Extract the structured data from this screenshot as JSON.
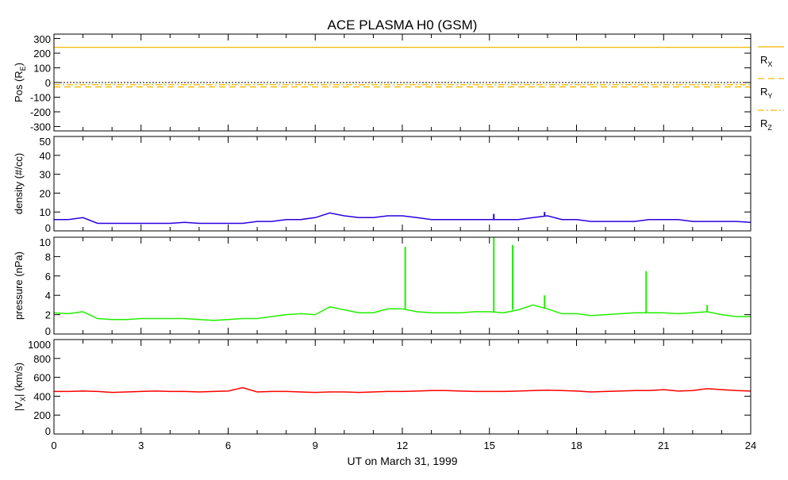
{
  "chart_data": {
    "type": "line",
    "title": "ACE PLASMA H0 (GSM)",
    "xlabel": "UT on March 31, 1999",
    "xlim": [
      0,
      24
    ],
    "xticks": [
      0,
      3,
      6,
      9,
      12,
      15,
      18,
      21,
      24
    ],
    "x": [
      0,
      0.5,
      1,
      1.5,
      2,
      2.5,
      3,
      3.5,
      4,
      4.5,
      5,
      5.5,
      6,
      6.5,
      7,
      7.5,
      8,
      8.5,
      9,
      9.5,
      10,
      10.5,
      11,
      11.5,
      12,
      12.5,
      13,
      13.5,
      14,
      14.5,
      15,
      15.5,
      16,
      16.5,
      17,
      17.5,
      18,
      18.5,
      19,
      19.5,
      20,
      20.5,
      21,
      21.5,
      22,
      22.5,
      23,
      23.5,
      24
    ],
    "panels": [
      {
        "ylabel": "Pos (R",
        "ylabel_sub": "E",
        "ylabel_end": ")",
        "ylim": [
          -330,
          330
        ],
        "yticks": [
          300,
          200,
          100,
          0,
          -100,
          -200,
          -300
        ],
        "zero_line": true,
        "series": [
          {
            "name": "R",
            "sub": "X",
            "color": "#f5b800",
            "dash": "",
            "constant": 240
          },
          {
            "name": "R",
            "sub": "Y",
            "color": "#f5b800",
            "dash": "8,5",
            "constant": -30
          },
          {
            "name": "R",
            "sub": "Z",
            "color": "#f5b800",
            "dash": "8,3,2,3",
            "constant": -15
          }
        ]
      },
      {
        "ylabel": "density (#/cc)",
        "ylim": [
          0,
          50
        ],
        "yticks": [
          0,
          10,
          20,
          30,
          40,
          50
        ],
        "series": [
          {
            "name": "density",
            "color": "#2a00e0",
            "values": [
              6,
              6,
              7,
              4,
              4,
              4,
              4,
              4,
              4,
              4.5,
              4,
              4,
              4,
              4,
              5,
              5,
              6,
              6,
              7,
              9.5,
              8,
              7,
              7,
              8,
              8,
              7,
              6,
              6,
              6,
              6,
              6,
              6,
              6,
              7,
              8,
              6,
              6,
              5,
              5,
              5,
              5,
              6,
              6,
              6,
              5,
              5,
              5,
              5,
              4.5
            ],
            "spikes": [
              [
                15.15,
                9
              ],
              [
                16.9,
                10
              ]
            ]
          }
        ]
      },
      {
        "ylabel": "pressure (nPa)",
        "ylim": [
          0,
          10
        ],
        "yticks": [
          0,
          2,
          4,
          6,
          8,
          10
        ],
        "series": [
          {
            "name": "pressure",
            "color": "#22ee00",
            "values": [
              2.2,
              2.1,
              2.3,
              1.6,
              1.5,
              1.5,
              1.6,
              1.6,
              1.6,
              1.6,
              1.5,
              1.4,
              1.5,
              1.6,
              1.6,
              1.8,
              2.0,
              2.1,
              2.0,
              2.8,
              2.5,
              2.2,
              2.2,
              2.6,
              2.6,
              2.3,
              2.2,
              2.2,
              2.2,
              2.3,
              2.3,
              2.2,
              2.5,
              3.0,
              2.6,
              2.1,
              2.1,
              1.9,
              2.0,
              2.1,
              2.2,
              2.2,
              2.2,
              2.1,
              2.2,
              2.3,
              2.0,
              1.8,
              1.8
            ],
            "spikes": [
              [
                12.1,
                9.0
              ],
              [
                15.15,
                10.0
              ],
              [
                15.8,
                9.2
              ],
              [
                16.9,
                4.0
              ],
              [
                20.4,
                6.5
              ],
              [
                22.5,
                3.0
              ]
            ]
          }
        ]
      },
      {
        "ylabel": "|V",
        "ylabel_sub": "X",
        "ylabel_end": "| (km/s)",
        "ylim": [
          0,
          1000
        ],
        "yticks": [
          0,
          200,
          400,
          600,
          800,
          1000
        ],
        "series": [
          {
            "name": "Vx",
            "color": "#ff0000",
            "values": [
              450,
              450,
              455,
              450,
              440,
              445,
              450,
              455,
              450,
              450,
              445,
              450,
              455,
              490,
              445,
              450,
              450,
              445,
              440,
              445,
              445,
              440,
              445,
              450,
              450,
              455,
              460,
              460,
              455,
              450,
              450,
              450,
              455,
              460,
              465,
              460,
              455,
              445,
              450,
              455,
              460,
              460,
              470,
              455,
              460,
              480,
              470,
              460,
              455
            ],
            "spikes": []
          }
        ]
      }
    ]
  }
}
